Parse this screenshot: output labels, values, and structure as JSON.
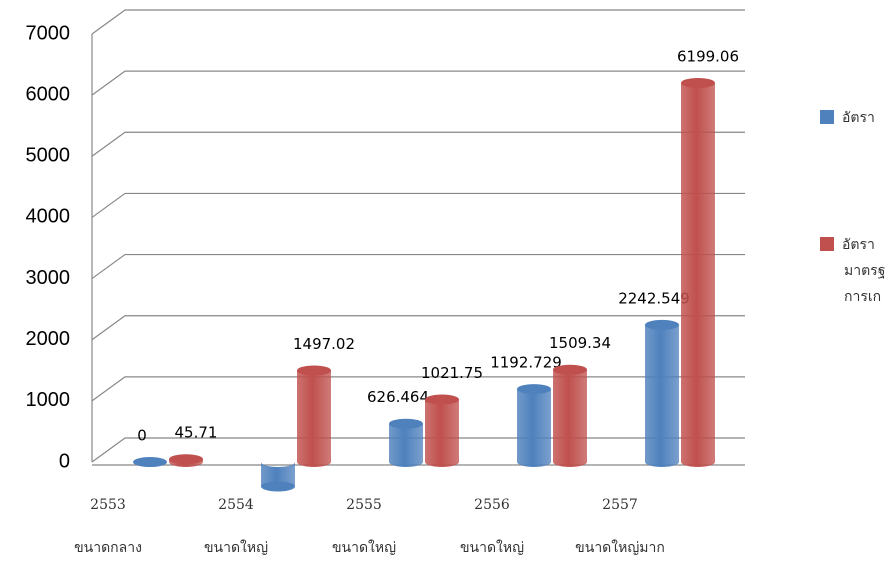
{
  "chart_data": {
    "type": "bar3d",
    "categories": [
      [
        "2553",
        "ขนาดกลาง"
      ],
      [
        "2554",
        "ขนาดใหญ่"
      ],
      [
        "2555",
        "ขนาดใหญ่"
      ],
      [
        "2556",
        "ขนาดใหญ่"
      ],
      [
        "2557",
        "ขนาดใหญ่มาก"
      ]
    ],
    "series": [
      {
        "name": [
          "อัตรา"
        ],
        "color": "#4f81bd",
        "values": [
          0,
          -400,
          626.464,
          1192.729,
          2242.549
        ],
        "value_labels": [
          "0",
          null,
          "626.464",
          "1192.729",
          "2242.549"
        ]
      },
      {
        "name": [
          "อัตรา",
          "มาตรฐ",
          "การเก"
        ],
        "color": "#c0504d",
        "values": [
          45.71,
          1497.02,
          1021.75,
          1509.34,
          6199.06
        ]
      }
    ],
    "ylim": [
      0,
      7000
    ],
    "yticks": [
      0,
      1000,
      2000,
      3000,
      4000,
      5000,
      6000,
      7000
    ],
    "grid": true
  }
}
